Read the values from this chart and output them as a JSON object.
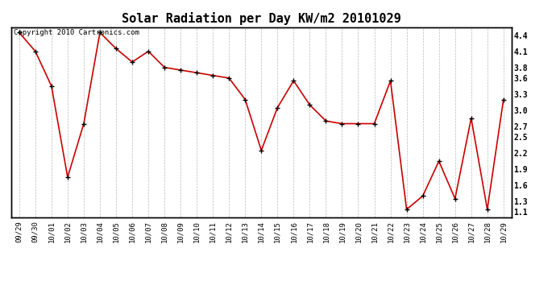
{
  "title": "Solar Radiation per Day KW/m2 20101029",
  "copyright_text": "Copyright 2010 Cartronics.com",
  "labels": [
    "09/29",
    "09/30",
    "10/01",
    "10/02",
    "10/03",
    "10/04",
    "10/05",
    "10/06",
    "10/07",
    "10/08",
    "10/09",
    "10/10",
    "10/11",
    "10/12",
    "10/13",
    "10/14",
    "10/15",
    "10/16",
    "10/17",
    "10/18",
    "10/19",
    "10/20",
    "10/21",
    "10/22",
    "10/23",
    "10/24",
    "10/25",
    "10/26",
    "10/27",
    "10/28",
    "10/29"
  ],
  "values": [
    4.45,
    4.1,
    3.45,
    1.75,
    2.75,
    4.45,
    4.15,
    3.9,
    4.1,
    3.8,
    3.75,
    3.7,
    3.65,
    3.6,
    3.2,
    2.25,
    3.05,
    3.55,
    3.1,
    2.8,
    2.75,
    2.75,
    2.75,
    3.55,
    1.15,
    1.4,
    2.05,
    1.35,
    2.85,
    1.15,
    3.2
  ],
  "line_color": "#cc0000",
  "marker_color": "#000000",
  "background_color": "#ffffff",
  "grid_color": "#bbbbbb",
  "ylim": [
    1.0,
    4.55
  ],
  "yticks": [
    1.1,
    1.3,
    1.6,
    1.9,
    2.2,
    2.5,
    2.7,
    3.0,
    3.3,
    3.6,
    3.8,
    4.1,
    4.4
  ],
  "title_fontsize": 11,
  "tick_fontsize": 6.5,
  "copyright_fontsize": 6.5
}
